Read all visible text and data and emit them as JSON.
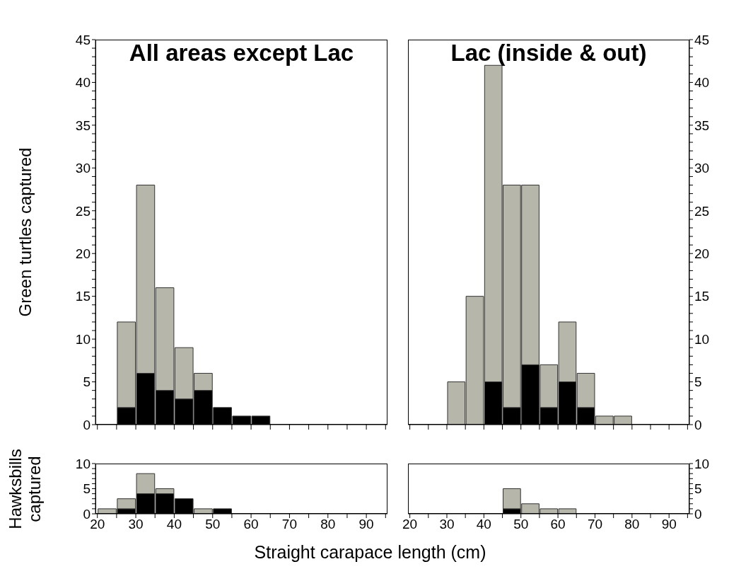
{
  "chart_data": [
    {
      "type": "bar",
      "title": "All areas except Lac",
      "ylabel": "Green turtles captured",
      "stacked": true,
      "legend": false,
      "grid": false,
      "tick_labels": "y",
      "x": [
        22.5,
        27.5,
        32.5,
        37.5,
        42.5,
        47.5,
        52.5,
        57.5,
        62.5,
        67.5,
        72.5,
        77.5,
        82.5,
        87.5,
        92.5
      ],
      "series": [
        {
          "color": "#000000",
          "values": [
            0,
            2,
            6,
            4,
            3,
            4,
            2,
            1,
            1,
            0,
            0,
            0,
            0,
            0,
            0
          ]
        },
        {
          "color": "#b6b6aa",
          "values": [
            0,
            10,
            22,
            12,
            6,
            2,
            0,
            0,
            0,
            0,
            0,
            0,
            0,
            0,
            0
          ]
        }
      ],
      "xlim": [
        19.5,
        95.5
      ],
      "xticks": [
        20,
        {
          "value": 25,
          "label": null
        },
        30,
        {
          "value": 35,
          "label": null
        },
        40,
        {
          "value": 45,
          "label": null
        },
        50,
        {
          "value": 55,
          "label": null
        },
        60,
        {
          "value": 65,
          "label": null
        },
        70,
        {
          "value": 75,
          "label": null
        },
        80,
        {
          "value": 85,
          "label": null
        },
        90,
        {
          "value": 95,
          "label": null
        }
      ],
      "ylim": [
        0,
        45
      ],
      "yticks": [
        0,
        {
          "value": 1,
          "label": null
        },
        {
          "value": 2,
          "label": null
        },
        {
          "value": 3,
          "label": null
        },
        {
          "value": 4,
          "label": null
        },
        5,
        {
          "value": 6,
          "label": null
        },
        {
          "value": 7,
          "label": null
        },
        {
          "value": 8,
          "label": null
        },
        {
          "value": 9,
          "label": null
        },
        10,
        {
          "value": 11,
          "label": null
        },
        {
          "value": 12,
          "label": null
        },
        {
          "value": 13,
          "label": null
        },
        {
          "value": 14,
          "label": null
        },
        15,
        {
          "value": 16,
          "label": null
        },
        {
          "value": 17,
          "label": null
        },
        {
          "value": 18,
          "label": null
        },
        {
          "value": 19,
          "label": null
        },
        20,
        {
          "value": 21,
          "label": null
        },
        {
          "value": 22,
          "label": null
        },
        {
          "value": 23,
          "label": null
        },
        {
          "value": 24,
          "label": null
        },
        25,
        {
          "value": 26,
          "label": null
        },
        {
          "value": 27,
          "label": null
        },
        {
          "value": 28,
          "label": null
        },
        {
          "value": 29,
          "label": null
        },
        30,
        {
          "value": 31,
          "label": null
        },
        {
          "value": 32,
          "label": null
        },
        {
          "value": 33,
          "label": null
        },
        {
          "value": 34,
          "label": null
        },
        35,
        {
          "value": 36,
          "label": null
        },
        {
          "value": 37,
          "label": null
        },
        {
          "value": 38,
          "label": null
        },
        {
          "value": 39,
          "label": null
        },
        40,
        {
          "value": 41,
          "label": null
        },
        {
          "value": 42,
          "label": null
        },
        {
          "value": 43,
          "label": null
        },
        {
          "value": 44,
          "label": null
        },
        45
      ]
    },
    {
      "type": "bar",
      "title": "Lac (inside & out)",
      "stacked": true,
      "legend": false,
      "grid": false,
      "tick_labels": "y",
      "x": [
        22.5,
        27.5,
        32.5,
        37.5,
        42.5,
        47.5,
        52.5,
        57.5,
        62.5,
        67.5,
        72.5,
        77.5,
        82.5,
        87.5,
        92.5
      ],
      "series": [
        {
          "color": "#000000",
          "values": [
            0,
            0,
            0,
            0,
            5,
            2,
            7,
            2,
            5,
            2,
            0,
            0,
            0,
            0,
            0
          ]
        },
        {
          "color": "#b6b6aa",
          "values": [
            0,
            0,
            5,
            15,
            37,
            26,
            21,
            5,
            7,
            4,
            1,
            1,
            0,
            0,
            0
          ]
        }
      ],
      "xlim": [
        19.5,
        95.5
      ],
      "xticks": [
        20,
        {
          "value": 25,
          "label": null
        },
        30,
        {
          "value": 35,
          "label": null
        },
        40,
        {
          "value": 45,
          "label": null
        },
        50,
        {
          "value": 55,
          "label": null
        },
        60,
        {
          "value": 65,
          "label": null
        },
        70,
        {
          "value": 75,
          "label": null
        },
        80,
        {
          "value": 85,
          "label": null
        },
        90,
        {
          "value": 95,
          "label": null
        }
      ],
      "ylim": [
        0,
        45
      ],
      "yticks": [
        0,
        {
          "value": 1,
          "label": null
        },
        {
          "value": 2,
          "label": null
        },
        {
          "value": 3,
          "label": null
        },
        {
          "value": 4,
          "label": null
        },
        5,
        {
          "value": 6,
          "label": null
        },
        {
          "value": 7,
          "label": null
        },
        {
          "value": 8,
          "label": null
        },
        {
          "value": 9,
          "label": null
        },
        10,
        {
          "value": 11,
          "label": null
        },
        {
          "value": 12,
          "label": null
        },
        {
          "value": 13,
          "label": null
        },
        {
          "value": 14,
          "label": null
        },
        15,
        {
          "value": 16,
          "label": null
        },
        {
          "value": 17,
          "label": null
        },
        {
          "value": 18,
          "label": null
        },
        {
          "value": 19,
          "label": null
        },
        20,
        {
          "value": 21,
          "label": null
        },
        {
          "value": 22,
          "label": null
        },
        {
          "value": 23,
          "label": null
        },
        {
          "value": 24,
          "label": null
        },
        25,
        {
          "value": 26,
          "label": null
        },
        {
          "value": 27,
          "label": null
        },
        {
          "value": 28,
          "label": null
        },
        {
          "value": 29,
          "label": null
        },
        30,
        {
          "value": 31,
          "label": null
        },
        {
          "value": 32,
          "label": null
        },
        {
          "value": 33,
          "label": null
        },
        {
          "value": 34,
          "label": null
        },
        35,
        {
          "value": 36,
          "label": null
        },
        {
          "value": 37,
          "label": null
        },
        {
          "value": 38,
          "label": null
        },
        {
          "value": 39,
          "label": null
        },
        40,
        {
          "value": 41,
          "label": null
        },
        {
          "value": 42,
          "label": null
        },
        {
          "value": 43,
          "label": null
        },
        {
          "value": 44,
          "label": null
        },
        45
      ]
    },
    {
      "type": "bar",
      "ylabel": "Hawksbills captured",
      "xlabel": "Straight carapace length (cm)",
      "stacked": true,
      "legend": false,
      "grid": false,
      "x": [
        22.5,
        27.5,
        32.5,
        37.5,
        42.5,
        47.5,
        52.5,
        57.5,
        62.5,
        67.5,
        72.5,
        77.5,
        82.5,
        87.5,
        92.5
      ],
      "series": [
        {
          "color": "#000000",
          "values": [
            0,
            1,
            4,
            4,
            3,
            0,
            1,
            0,
            0,
            0,
            0,
            0,
            0,
            0,
            0
          ]
        },
        {
          "color": "#b6b6aa",
          "values": [
            1,
            2,
            4,
            1,
            0,
            1,
            0,
            0,
            0,
            0,
            0,
            0,
            0,
            0,
            0
          ]
        }
      ],
      "xlim": [
        19.5,
        95.5
      ],
      "xticks": [
        20,
        {
          "value": 25,
          "label": null
        },
        30,
        {
          "value": 35,
          "label": null
        },
        40,
        {
          "value": 45,
          "label": null
        },
        50,
        {
          "value": 55,
          "label": null
        },
        60,
        {
          "value": 65,
          "label": null
        },
        70,
        {
          "value": 75,
          "label": null
        },
        80,
        {
          "value": 85,
          "label": null
        },
        90,
        {
          "value": 95,
          "label": null
        }
      ],
      "ylim": [
        0,
        10
      ],
      "yticks": [
        0,
        {
          "value": 1,
          "label": null
        },
        {
          "value": 2,
          "label": null
        },
        {
          "value": 3,
          "label": null
        },
        {
          "value": 4,
          "label": null
        },
        5,
        {
          "value": 6,
          "label": null
        },
        {
          "value": 7,
          "label": null
        },
        {
          "value": 8,
          "label": null
        },
        {
          "value": 9,
          "label": null
        },
        10
      ]
    },
    {
      "type": "bar",
      "stacked": true,
      "legend": false,
      "grid": false,
      "x": [
        22.5,
        27.5,
        32.5,
        37.5,
        42.5,
        47.5,
        52.5,
        57.5,
        62.5,
        67.5,
        72.5,
        77.5,
        82.5,
        87.5,
        92.5
      ],
      "series": [
        {
          "color": "#000000",
          "values": [
            0,
            0,
            0,
            0,
            0,
            1,
            0,
            0,
            0,
            0,
            0,
            0,
            0,
            0,
            0
          ]
        },
        {
          "color": "#b6b6aa",
          "values": [
            0,
            0,
            0,
            0,
            0,
            4,
            2,
            1,
            1,
            0,
            0,
            0,
            0,
            0,
            0
          ]
        }
      ],
      "xlim": [
        19.5,
        95.5
      ],
      "xticks": [
        20,
        {
          "value": 25,
          "label": null
        },
        30,
        {
          "value": 35,
          "label": null
        },
        40,
        {
          "value": 45,
          "label": null
        },
        50,
        {
          "value": 55,
          "label": null
        },
        60,
        {
          "value": 65,
          "label": null
        },
        70,
        {
          "value": 75,
          "label": null
        },
        80,
        {
          "value": 85,
          "label": null
        },
        90,
        {
          "value": 95,
          "label": null
        }
      ],
      "ylim": [
        0,
        10
      ],
      "yticks": [
        0,
        {
          "value": 1,
          "label": null
        },
        {
          "value": 2,
          "label": null
        },
        {
          "value": 3,
          "label": null
        },
        {
          "value": 4,
          "label": null
        },
        5,
        {
          "value": 6,
          "label": null
        },
        {
          "value": 7,
          "label": null
        },
        {
          "value": 8,
          "label": null
        },
        {
          "value": 9,
          "label": null
        },
        10
      ]
    }
  ]
}
